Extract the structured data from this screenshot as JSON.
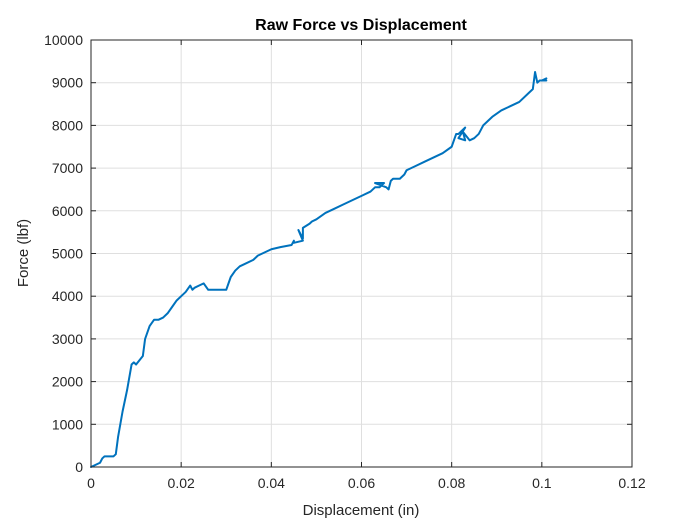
{
  "chart_data": {
    "type": "line",
    "title": "Raw Force vs Displacement",
    "xlabel": "Displacement (in)",
    "ylabel": "Force (lbf)",
    "xlim": [
      0,
      0.12
    ],
    "ylim": [
      0,
      10000
    ],
    "x_ticks": [
      0,
      0.02,
      0.04,
      0.06,
      0.08,
      0.1,
      0.12
    ],
    "x_tick_labels": [
      "0",
      "0.02",
      "0.04",
      "0.06",
      "0.08",
      "0.1",
      "0.12"
    ],
    "y_ticks": [
      0,
      1000,
      2000,
      3000,
      4000,
      5000,
      6000,
      7000,
      8000,
      9000,
      10000
    ],
    "y_tick_labels": [
      "0",
      "1000",
      "2000",
      "3000",
      "4000",
      "5000",
      "6000",
      "7000",
      "8000",
      "9000",
      "10000"
    ],
    "grid": true,
    "line_color": "#0072BD",
    "series": [
      {
        "x": [
          0,
          0.002,
          0.0025,
          0.003,
          0.005,
          0.0055,
          0.006,
          0.007,
          0.008,
          0.009,
          0.0095,
          0.01,
          0.0115,
          0.012,
          0.013,
          0.014,
          0.015,
          0.016,
          0.017,
          0.018,
          0.019,
          0.02,
          0.021,
          0.022,
          0.0225,
          0.023,
          0.024,
          0.025,
          0.026,
          0.027,
          0.0275,
          0.028,
          0.03,
          0.0305,
          0.031,
          0.032,
          0.033,
          0.034,
          0.036,
          0.037,
          0.038,
          0.04,
          0.042,
          0.0445,
          0.045,
          0.045,
          0.047,
          0.046,
          0.047,
          0.047,
          0.0485,
          0.049,
          0.05,
          0.052,
          0.054,
          0.056,
          0.058,
          0.06,
          0.062,
          0.063,
          0.064,
          0.065,
          0.063,
          0.0655,
          0.066,
          0.0665,
          0.067,
          0.0685,
          0.069,
          0.0695,
          0.07,
          0.072,
          0.074,
          0.076,
          0.078,
          0.08,
          0.081,
          0.0815,
          0.083,
          0.0815,
          0.083,
          0.0825,
          0.084,
          0.085,
          0.086,
          0.0865,
          0.087,
          0.089,
          0.091,
          0.093,
          0.095,
          0.097,
          0.098,
          0.0985,
          0.099,
          0.0995,
          0.1,
          0.101,
          0.1,
          0.101
        ],
        "y": [
          0,
          100,
          200,
          250,
          250,
          300,
          700,
          1300,
          1800,
          2400,
          2450,
          2400,
          2600,
          3000,
          3300,
          3450,
          3450,
          3500,
          3600,
          3750,
          3900,
          4000,
          4100,
          4250,
          4150,
          4200,
          4250,
          4300,
          4150,
          4150,
          4150,
          4150,
          4150,
          4300,
          4450,
          4600,
          4700,
          4750,
          4850,
          4950,
          5000,
          5100,
          5150,
          5200,
          5300,
          5250,
          5300,
          5550,
          5350,
          5600,
          5700,
          5750,
          5800,
          5950,
          6050,
          6150,
          6250,
          6350,
          6450,
          6550,
          6550,
          6650,
          6650,
          6550,
          6500,
          6700,
          6750,
          6750,
          6800,
          6850,
          6950,
          7050,
          7150,
          7250,
          7350,
          7500,
          7800,
          7800,
          7950,
          7700,
          7650,
          7850,
          7650,
          7700,
          7800,
          7900,
          8000,
          8200,
          8350,
          8450,
          8550,
          8750,
          8850,
          9250,
          9000,
          9050,
          9050,
          9100,
          9050,
          9050
        ]
      }
    ]
  }
}
